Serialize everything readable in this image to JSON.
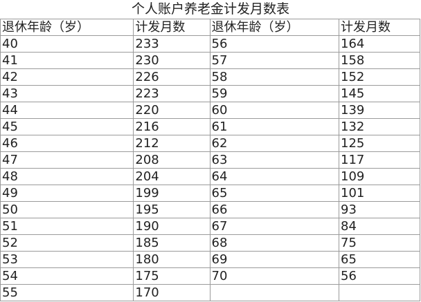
{
  "title": "个人账户养老金计发月数表",
  "headers": [
    "退休年龄（岁）",
    "计发月数",
    "退休年龄（岁）",
    "计发月数"
  ],
  "rows": [
    [
      "40",
      "233",
      "56",
      "164"
    ],
    [
      "41",
      "230",
      "57",
      "158"
    ],
    [
      "42",
      "226",
      "58",
      "152"
    ],
    [
      "43",
      "223",
      "59",
      "145"
    ],
    [
      "44",
      "220",
      "60",
      "139"
    ],
    [
      "45",
      "216",
      "61",
      "132"
    ],
    [
      "46",
      "212",
      "62",
      "125"
    ],
    [
      "47",
      "208",
      "63",
      "117"
    ],
    [
      "48",
      "204",
      "64",
      "109"
    ],
    [
      "49",
      "199",
      "65",
      "101"
    ],
    [
      "50",
      "195",
      "66",
      "93"
    ],
    [
      "51",
      "190",
      "67",
      "84"
    ],
    [
      "52",
      "185",
      "68",
      "75"
    ],
    [
      "53",
      "180",
      "69",
      "65"
    ],
    [
      "54",
      "175",
      "70",
      "56"
    ],
    [
      "55",
      "170",
      "",
      ""
    ]
  ]
}
